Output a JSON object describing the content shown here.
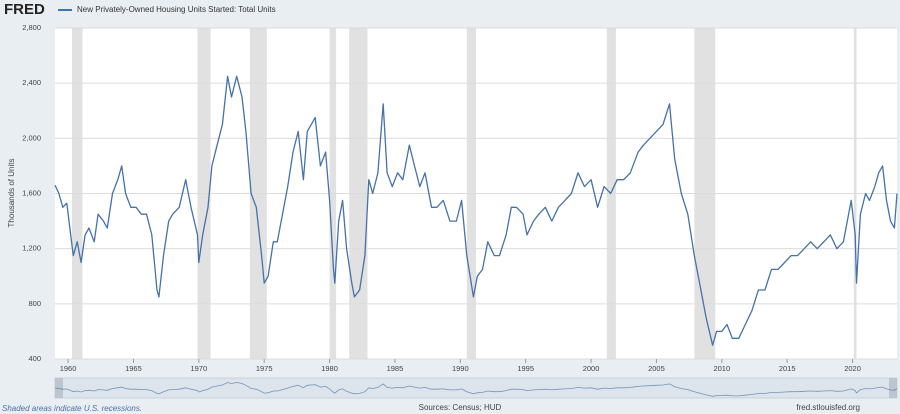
{
  "logo": "FRED",
  "footer": {
    "note": "Shaded areas indicate U.S. recessions.",
    "source": "Sources: Census; HUD",
    "site": "fred.stlouisfed.org"
  },
  "chart_data": {
    "type": "line",
    "y_label": "Thousands of Units",
    "xlim": [
      1959.0,
      2023.4
    ],
    "xticks": [
      1960,
      1965,
      1970,
      1975,
      1980,
      1985,
      1990,
      1995,
      2000,
      2005,
      2010,
      2015,
      2020
    ],
    "ylim": [
      400,
      2800
    ],
    "yticks": [
      400,
      800,
      {
        "value": 1200,
        "label": "1,200"
      },
      {
        "value": 1600,
        "label": "1,600"
      },
      {
        "value": 2000,
        "label": "2,000"
      },
      {
        "value": 2400,
        "label": "2,400"
      },
      {
        "value": 2800,
        "label": "2,800"
      }
    ],
    "grid": true,
    "recessions": [
      [
        1960.3,
        1961.1
      ],
      [
        1969.9,
        1970.9
      ],
      [
        1973.9,
        1975.2
      ],
      [
        1980.0,
        1980.5
      ],
      [
        1981.5,
        1982.9
      ],
      [
        1990.5,
        1991.2
      ],
      [
        2001.2,
        2001.9
      ],
      [
        2007.9,
        2009.5
      ],
      [
        2020.1,
        2020.3
      ]
    ],
    "recession_color": "#e1e1e1",
    "x": [
      1959.0,
      1959.3,
      1959.6,
      1959.9,
      1960.2,
      1960.4,
      1960.7,
      1961.0,
      1961.3,
      1961.6,
      1962.0,
      1962.3,
      1962.7,
      1963.0,
      1963.4,
      1963.8,
      1964.1,
      1964.4,
      1964.8,
      1965.2,
      1965.6,
      1966.0,
      1966.4,
      1966.8,
      1966.95,
      1967.3,
      1967.7,
      1968.0,
      1968.5,
      1969.0,
      1969.4,
      1969.9,
      1970.0,
      1970.3,
      1970.7,
      1971.0,
      1971.4,
      1971.8,
      1972.2,
      1972.5,
      1972.9,
      1973.3,
      1973.6,
      1974.0,
      1974.4,
      1974.8,
      1975.0,
      1975.3,
      1975.7,
      1976.0,
      1976.4,
      1976.8,
      1977.2,
      1977.6,
      1978.0,
      1978.3,
      1978.9,
      1979.3,
      1979.7,
      1980.0,
      1980.3,
      1980.4,
      1980.7,
      1981.0,
      1981.3,
      1981.7,
      1981.9,
      1982.3,
      1982.7,
      1983.0,
      1983.3,
      1983.7,
      1984.1,
      1984.4,
      1984.8,
      1985.2,
      1985.6,
      1986.1,
      1986.5,
      1986.9,
      1987.3,
      1987.8,
      1988.2,
      1988.7,
      1989.2,
      1989.7,
      1990.1,
      1990.5,
      1991.0,
      1991.3,
      1991.7,
      1992.1,
      1992.6,
      1993.0,
      1993.5,
      1993.9,
      1994.3,
      1994.8,
      1995.1,
      1995.6,
      1996.0,
      1996.5,
      1997.0,
      1997.5,
      1998.0,
      1998.5,
      1999.0,
      1999.5,
      2000.0,
      2000.5,
      2001.0,
      2001.5,
      2002.0,
      2002.5,
      2003.0,
      2003.6,
      2004.0,
      2004.5,
      2005.0,
      2005.5,
      2006.0,
      2006.4,
      2006.9,
      2007.4,
      2007.9,
      2008.3,
      2008.8,
      2009.3,
      2009.6,
      2010.0,
      2010.4,
      2010.8,
      2011.3,
      2011.8,
      2012.3,
      2012.8,
      2013.3,
      2013.8,
      2014.3,
      2014.8,
      2015.3,
      2015.8,
      2016.3,
      2016.8,
      2017.3,
      2017.8,
      2018.3,
      2018.8,
      2019.3,
      2019.9,
      2020.2,
      2020.3,
      2020.6,
      2021.0,
      2021.3,
      2021.7,
      2022.0,
      2022.3,
      2022.6,
      2022.9,
      2023.2,
      2023.4
    ],
    "series": [
      {
        "name": "New Privately-Owned Housing Units Started: Total Units",
        "color": "#4572a7",
        "values": [
          1660,
          1600,
          1500,
          1530,
          1300,
          1150,
          1250,
          1100,
          1300,
          1350,
          1250,
          1450,
          1400,
          1350,
          1600,
          1700,
          1800,
          1600,
          1500,
          1500,
          1450,
          1450,
          1300,
          900,
          850,
          1150,
          1400,
          1450,
          1500,
          1700,
          1500,
          1300,
          1100,
          1300,
          1500,
          1800,
          1950,
          2100,
          2450,
          2300,
          2450,
          2300,
          2050,
          1600,
          1500,
          1150,
          950,
          1000,
          1250,
          1250,
          1450,
          1650,
          1900,
          2050,
          1700,
          2050,
          2150,
          1800,
          1900,
          1550,
          1050,
          950,
          1400,
          1550,
          1200,
          950,
          850,
          900,
          1150,
          1700,
          1600,
          1750,
          2250,
          1750,
          1650,
          1750,
          1700,
          1950,
          1800,
          1650,
          1750,
          1500,
          1500,
          1550,
          1400,
          1400,
          1550,
          1150,
          850,
          1000,
          1050,
          1250,
          1150,
          1150,
          1300,
          1500,
          1500,
          1450,
          1300,
          1400,
          1450,
          1500,
          1400,
          1500,
          1550,
          1600,
          1750,
          1650,
          1700,
          1500,
          1650,
          1600,
          1700,
          1700,
          1750,
          1900,
          1950,
          2000,
          2050,
          2100,
          2250,
          1850,
          1600,
          1450,
          1150,
          950,
          700,
          500,
          600,
          600,
          650,
          550,
          550,
          650,
          750,
          900,
          900,
          1050,
          1050,
          1100,
          1150,
          1150,
          1200,
          1250,
          1200,
          1250,
          1300,
          1200,
          1250,
          1550,
          1300,
          950,
          1450,
          1600,
          1550,
          1650,
          1750,
          1800,
          1550,
          1400,
          1350,
          1600
        ]
      }
    ]
  }
}
